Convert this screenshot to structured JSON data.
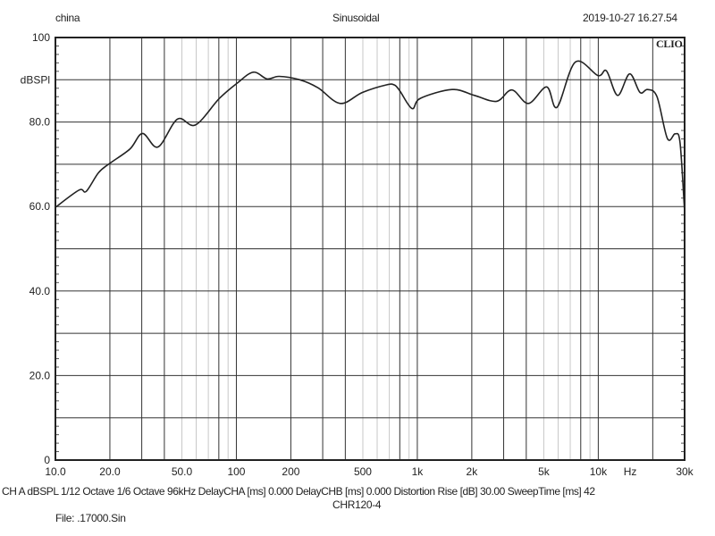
{
  "header": {
    "left": "china",
    "center": "Sinusoidal",
    "right": "2019-10-27 16.27.54"
  },
  "logo": "CLIO",
  "footer": {
    "info": "CH A   dBSPL   1/12 Octave   1/6 Octave   96kHz   DelayCHA [ms] 0.000   DelayCHB [ms] 0.000   Distortion Rise [dB] 30.00   SweepTime [ms] 42",
    "model": "CHR120-4",
    "file": "File: .17000.Sin"
  },
  "chart_data": {
    "type": "line",
    "title": "",
    "xlabel": "Hz",
    "ylabel": "dBSPl",
    "xscale": "log",
    "xlim": [
      10,
      30000
    ],
    "ylim": [
      0,
      100
    ],
    "grid": true,
    "x_tick_labels": [
      "10.0",
      "20.0",
      "50.0",
      "100",
      "200",
      "500",
      "1k",
      "2k",
      "5k",
      "10k",
      "30k"
    ],
    "x_tick_values": [
      10,
      20,
      50,
      100,
      200,
      500,
      1000,
      2000,
      5000,
      10000,
      30000
    ],
    "y_tick_labels": [
      {
        "value": 100,
        "label": "100"
      },
      {
        "value": 90,
        "label": "dBSPl"
      },
      {
        "value": 80,
        "label": "80.0"
      },
      {
        "value": 60,
        "label": "60.0"
      },
      {
        "value": 40,
        "label": "40.0"
      },
      {
        "value": 20,
        "label": "20.0"
      },
      {
        "value": 0,
        "label": "0"
      }
    ],
    "line_color": "#222222",
    "series": [
      {
        "x": [
          10,
          13.5,
          14.8,
          17.3,
          19.8,
          25.8,
          30.3,
          36.9,
          47.3,
          59.4,
          80.6,
          101,
          124,
          148,
          172,
          224,
          283,
          375,
          497,
          675,
          745,
          800,
          935,
          1039,
          1555,
          2070,
          2740,
          3330,
          4110,
          5190,
          5920,
          7470,
          9950,
          11100,
          12800,
          14900,
          17000,
          18700,
          21100,
          24100,
          26600,
          28300,
          30000
        ],
        "y": [
          59.8,
          63.9,
          63.6,
          68.0,
          70.1,
          73.6,
          77.3,
          74.1,
          80.7,
          79.3,
          85.6,
          89.2,
          91.8,
          90.2,
          90.8,
          90.0,
          88.1,
          84.4,
          87.0,
          88.8,
          88.8,
          87.4,
          83.2,
          85.6,
          87.7,
          86.3,
          84.9,
          87.6,
          84.4,
          88.3,
          83.5,
          94.2,
          91.0,
          92.1,
          86.3,
          91.4,
          87.0,
          87.7,
          86.0,
          76.1,
          77.2,
          75.1,
          58.8
        ]
      }
    ]
  }
}
